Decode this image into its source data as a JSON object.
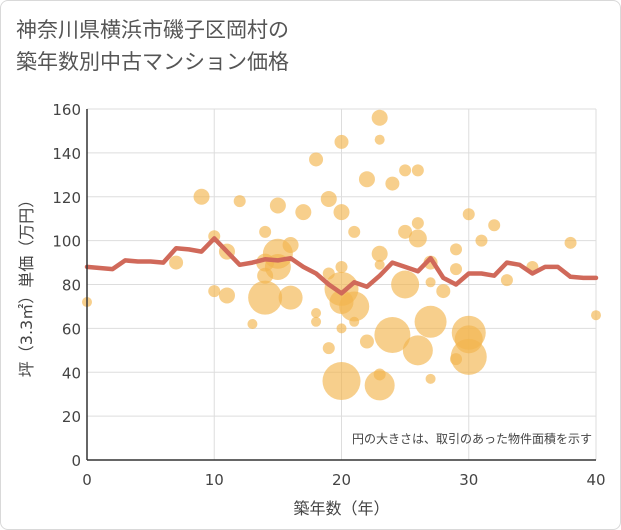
{
  "title_lines": [
    "神奈川県横浜市磯子区岡村の",
    "築年数別中古マンション価格"
  ],
  "chart_data": {
    "type": "scatter",
    "title": "神奈川県横浜市磯子区岡村の築年数別中古マンション価格",
    "xlabel": "築年数（年）",
    "ylabel": "坪（3.3㎡）単価（万円）",
    "xlim": [
      0,
      40
    ],
    "ylim": [
      0,
      160
    ],
    "x_ticks": [
      0,
      10,
      20,
      30,
      40
    ],
    "y_ticks": [
      0,
      20,
      40,
      60,
      80,
      100,
      120,
      140,
      160
    ],
    "grid": true,
    "note": "円の大きさは、取引のあった物件面積を示す",
    "colors": {
      "bubble": "#f2b54f",
      "line": "#d0695a",
      "grid": "#dddddd",
      "axis": "#333333"
    },
    "points": [
      {
        "x": 0,
        "y": 72,
        "size": 10
      },
      {
        "x": 7,
        "y": 90,
        "size": 14
      },
      {
        "x": 9,
        "y": 120,
        "size": 16
      },
      {
        "x": 10,
        "y": 102,
        "size": 12
      },
      {
        "x": 10,
        "y": 77,
        "size": 12
      },
      {
        "x": 11,
        "y": 95,
        "size": 16
      },
      {
        "x": 11,
        "y": 75,
        "size": 16
      },
      {
        "x": 12,
        "y": 118,
        "size": 12
      },
      {
        "x": 13,
        "y": 62,
        "size": 10
      },
      {
        "x": 14,
        "y": 104,
        "size": 12
      },
      {
        "x": 14,
        "y": 90,
        "size": 18
      },
      {
        "x": 14,
        "y": 84,
        "size": 16
      },
      {
        "x": 14,
        "y": 74,
        "size": 34
      },
      {
        "x": 15,
        "y": 116,
        "size": 16
      },
      {
        "x": 15,
        "y": 94,
        "size": 30
      },
      {
        "x": 15,
        "y": 88,
        "size": 26
      },
      {
        "x": 16,
        "y": 98,
        "size": 16
      },
      {
        "x": 16,
        "y": 74,
        "size": 24
      },
      {
        "x": 17,
        "y": 113,
        "size": 16
      },
      {
        "x": 18,
        "y": 137,
        "size": 14
      },
      {
        "x": 18,
        "y": 67,
        "size": 10
      },
      {
        "x": 18,
        "y": 63,
        "size": 10
      },
      {
        "x": 19,
        "y": 119,
        "size": 16
      },
      {
        "x": 19,
        "y": 85,
        "size": 12
      },
      {
        "x": 19,
        "y": 51,
        "size": 12
      },
      {
        "x": 20,
        "y": 145,
        "size": 14
      },
      {
        "x": 20,
        "y": 113,
        "size": 16
      },
      {
        "x": 20,
        "y": 88,
        "size": 12
      },
      {
        "x": 20,
        "y": 78,
        "size": 34
      },
      {
        "x": 20,
        "y": 72,
        "size": 24
      },
      {
        "x": 20,
        "y": 60,
        "size": 10
      },
      {
        "x": 20,
        "y": 36,
        "size": 38
      },
      {
        "x": 21,
        "y": 104,
        "size": 12
      },
      {
        "x": 21,
        "y": 70,
        "size": 30
      },
      {
        "x": 21,
        "y": 63,
        "size": 10
      },
      {
        "x": 22,
        "y": 128,
        "size": 16
      },
      {
        "x": 22,
        "y": 54,
        "size": 14
      },
      {
        "x": 23,
        "y": 156,
        "size": 16
      },
      {
        "x": 23,
        "y": 146,
        "size": 10
      },
      {
        "x": 23,
        "y": 94,
        "size": 16
      },
      {
        "x": 23,
        "y": 89,
        "size": 10
      },
      {
        "x": 23,
        "y": 39,
        "size": 12
      },
      {
        "x": 23,
        "y": 34,
        "size": 30
      },
      {
        "x": 24,
        "y": 126,
        "size": 14
      },
      {
        "x": 24,
        "y": 57,
        "size": 36
      },
      {
        "x": 25,
        "y": 132,
        "size": 12
      },
      {
        "x": 25,
        "y": 104,
        "size": 14
      },
      {
        "x": 25,
        "y": 80,
        "size": 28
      },
      {
        "x": 26,
        "y": 132,
        "size": 12
      },
      {
        "x": 26,
        "y": 108,
        "size": 12
      },
      {
        "x": 26,
        "y": 101,
        "size": 18
      },
      {
        "x": 26,
        "y": 50,
        "size": 30
      },
      {
        "x": 27,
        "y": 90,
        "size": 14
      },
      {
        "x": 27,
        "y": 81,
        "size": 10
      },
      {
        "x": 27,
        "y": 63,
        "size": 32
      },
      {
        "x": 27,
        "y": 37,
        "size": 10
      },
      {
        "x": 28,
        "y": 77,
        "size": 14
      },
      {
        "x": 29,
        "y": 96,
        "size": 12
      },
      {
        "x": 29,
        "y": 87,
        "size": 12
      },
      {
        "x": 29,
        "y": 46,
        "size": 12
      },
      {
        "x": 30,
        "y": 112,
        "size": 12
      },
      {
        "x": 30,
        "y": 58,
        "size": 34
      },
      {
        "x": 30,
        "y": 55,
        "size": 28
      },
      {
        "x": 30,
        "y": 47,
        "size": 36
      },
      {
        "x": 31,
        "y": 100,
        "size": 12
      },
      {
        "x": 32,
        "y": 107,
        "size": 12
      },
      {
        "x": 33,
        "y": 82,
        "size": 12
      },
      {
        "x": 35,
        "y": 88,
        "size": 12
      },
      {
        "x": 38,
        "y": 99,
        "size": 12
      },
      {
        "x": 40,
        "y": 66,
        "size": 10
      }
    ],
    "line": {
      "x": [
        0,
        1,
        2,
        3,
        4,
        5,
        6,
        7,
        8,
        9,
        10,
        11,
        12,
        13,
        14,
        15,
        16,
        17,
        18,
        19,
        20,
        21,
        22,
        23,
        24,
        25,
        26,
        27,
        28,
        29,
        30,
        31,
        32,
        33,
        34,
        35,
        36,
        37,
        38,
        39,
        40
      ],
      "y": [
        88,
        87.5,
        87,
        91,
        90.5,
        90.5,
        90,
        96.5,
        96,
        95,
        101,
        95,
        89,
        90,
        91.5,
        91,
        92,
        88,
        85,
        80,
        76,
        81,
        79,
        84,
        90,
        88,
        86,
        92,
        83,
        80,
        85,
        85,
        84,
        90,
        89,
        85,
        88,
        88,
        83.5,
        83,
        83
      ]
    }
  }
}
